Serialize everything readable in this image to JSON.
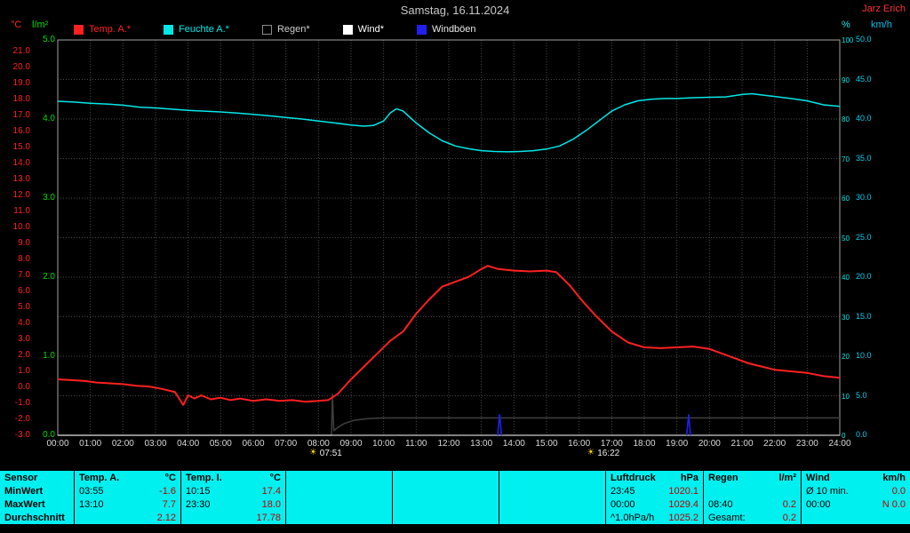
{
  "header": {
    "title": "Samstag, 16.11.2024",
    "station": "Jarz Erich"
  },
  "colors": {
    "chart_background": "#000000",
    "grid": "#4a4a4a",
    "table_background": "#00f0f0",
    "value_text": "#c00000",
    "temp": "#ff2020",
    "humidity": "#00e8e8",
    "rain": "#3c3c3c",
    "wind": "#ffffff",
    "gusts": "#2020ee"
  },
  "legend": [
    {
      "label": "Temp. A.*",
      "swatch": "#ff2020",
      "border": "#ff2020",
      "text": "#ff2020"
    },
    {
      "label": "Feuchte A.*",
      "swatch": "#00e8e8",
      "border": "#00e8e8",
      "text": "#00e8e8"
    },
    {
      "label": "Regen*",
      "swatch": "#000000",
      "border": "#8a8a8a",
      "text": "#cccccc"
    },
    {
      "label": "Wind*",
      "swatch": "#ffffff",
      "border": "#ffffff",
      "text": "#ffffff"
    },
    {
      "label": "Windböen",
      "swatch": "#2020ee",
      "border": "#2020ee",
      "text": "#e8e8e8"
    }
  ],
  "chart_data": {
    "type": "line",
    "title": "Samstag, 16.11.2024",
    "x_range": [
      0,
      24
    ],
    "x_ticks": [
      "00:00",
      "01:00",
      "02:00",
      "03:00",
      "04:00",
      "05:00",
      "06:00",
      "07:00",
      "08:00",
      "09:00",
      "10:00",
      "11:00",
      "12:00",
      "13:00",
      "14:00",
      "15:00",
      "16:00",
      "17:00",
      "18:00",
      "19:00",
      "20:00",
      "21:00",
      "22:00",
      "23:00",
      "24:00"
    ],
    "axes": {
      "temp_c": {
        "label": "°C",
        "min": -3,
        "max": 21,
        "ticks": [
          "21.0",
          "20.0",
          "19.0",
          "18.0",
          "17.0",
          "16.0",
          "15.0",
          "14.0",
          "13.0",
          "12.0",
          "11.0",
          "10.0",
          "9.0",
          "8.0",
          "7.0",
          "6.0",
          "5.0",
          "4.0",
          "3.0",
          "2.0",
          "1.0",
          "0.0",
          "-1.0",
          "-2.0",
          "-3.0"
        ]
      },
      "rain_lm2": {
        "label": "l/m²",
        "min": 0,
        "max": 5,
        "ticks": [
          "5.0",
          "4.0",
          "3.0",
          "2.0",
          "1.0",
          "0.0"
        ]
      },
      "humidity_pct": {
        "label": "%",
        "min": 0,
        "max": 100,
        "ticks": [
          "100",
          "90",
          "80",
          "70",
          "60",
          "50",
          "40",
          "30",
          "20",
          "10",
          "0"
        ]
      },
      "wind_kmh": {
        "label": "km/h",
        "min": 0,
        "max": 50,
        "ticks": [
          "50.0",
          "45.0",
          "40.0",
          "35.0",
          "30.0",
          "25.0",
          "20.0",
          "15.0",
          "10.0",
          "5.0",
          "0.0"
        ]
      }
    },
    "series": [
      {
        "id": "rain-line",
        "name": "Regen*",
        "axis": "rain_lm2",
        "color": "#3c3c3c",
        "width": 1.6,
        "points": [
          [
            0,
            0
          ],
          [
            8.4,
            0
          ],
          [
            8.43,
            0.52
          ],
          [
            8.47,
            0.06
          ],
          [
            8.6,
            0.1
          ],
          [
            8.8,
            0.15
          ],
          [
            9.1,
            0.19
          ],
          [
            9.5,
            0.21
          ],
          [
            10,
            0.22
          ],
          [
            24,
            0.22
          ]
        ]
      },
      {
        "id": "wind-line",
        "name": "Wind*",
        "axis": "wind_kmh",
        "color": "#ffffff",
        "width": 1,
        "points": [
          [
            0,
            0
          ],
          [
            24,
            0
          ]
        ]
      },
      {
        "id": "gust-marker-1",
        "name": "Windböen",
        "axis": "wind_kmh",
        "color": "#2020ee",
        "width": 1.6,
        "points": [
          [
            13.5,
            0
          ],
          [
            13.56,
            2.6
          ],
          [
            13.62,
            0
          ]
        ]
      },
      {
        "id": "gust-marker-2",
        "name": "Windböen",
        "axis": "wind_kmh",
        "color": "#2020ee",
        "width": 1.6,
        "points": [
          [
            19.3,
            0
          ],
          [
            19.36,
            2.6
          ],
          [
            19.42,
            0
          ]
        ]
      },
      {
        "id": "humidity-line",
        "name": "Feuchte A.*",
        "axis": "humidity_pct",
        "color": "#00e8e8",
        "width": 1.5,
        "points": [
          [
            0,
            84.5
          ],
          [
            0.5,
            84.3
          ],
          [
            1,
            84
          ],
          [
            1.5,
            83.8
          ],
          [
            2,
            83.5
          ],
          [
            2.5,
            83
          ],
          [
            3,
            82.8
          ],
          [
            3.5,
            82.5
          ],
          [
            4,
            82.2
          ],
          [
            4.5,
            82
          ],
          [
            5,
            81.8
          ],
          [
            5.5,
            81.5
          ],
          [
            6,
            81.2
          ],
          [
            6.5,
            80.8
          ],
          [
            7,
            80.4
          ],
          [
            7.5,
            80
          ],
          [
            8,
            79.5
          ],
          [
            8.5,
            79
          ],
          [
            9,
            78.5
          ],
          [
            9.4,
            78.2
          ],
          [
            9.7,
            78.4
          ],
          [
            10,
            79.5
          ],
          [
            10.2,
            81.5
          ],
          [
            10.4,
            82.6
          ],
          [
            10.6,
            82
          ],
          [
            10.8,
            80.5
          ],
          [
            11,
            79
          ],
          [
            11.4,
            76.5
          ],
          [
            11.8,
            74.5
          ],
          [
            12.2,
            73.2
          ],
          [
            12.6,
            72.5
          ],
          [
            13,
            72
          ],
          [
            13.4,
            71.8
          ],
          [
            13.8,
            71.7
          ],
          [
            14.2,
            71.8
          ],
          [
            14.6,
            72
          ],
          [
            15,
            72.4
          ],
          [
            15.4,
            73.2
          ],
          [
            15.8,
            74.8
          ],
          [
            16.2,
            77
          ],
          [
            16.6,
            79.5
          ],
          [
            17,
            82
          ],
          [
            17.4,
            83.6
          ],
          [
            17.8,
            84.6
          ],
          [
            18.2,
            85
          ],
          [
            18.6,
            85.2
          ],
          [
            19,
            85.2
          ],
          [
            19.5,
            85.4
          ],
          [
            20,
            85.5
          ],
          [
            20.5,
            85.6
          ],
          [
            21,
            86.2
          ],
          [
            21.3,
            86.4
          ],
          [
            21.6,
            86.1
          ],
          [
            22,
            85.7
          ],
          [
            22.5,
            85.2
          ],
          [
            23,
            84.6
          ],
          [
            23.5,
            83.6
          ],
          [
            24,
            83.2
          ]
        ]
      },
      {
        "id": "temp-line",
        "name": "Temp. A.*",
        "axis": "temp_c",
        "color": "#ff2020",
        "width": 2,
        "points": [
          [
            0,
            0.5
          ],
          [
            0.4,
            0.45
          ],
          [
            0.8,
            0.4
          ],
          [
            1.2,
            0.3
          ],
          [
            1.6,
            0.25
          ],
          [
            2,
            0.2
          ],
          [
            2.4,
            0.1
          ],
          [
            2.8,
            0.05
          ],
          [
            3.2,
            -0.1
          ],
          [
            3.6,
            -0.3
          ],
          [
            3.85,
            -1.1
          ],
          [
            4,
            -0.5
          ],
          [
            4.2,
            -0.7
          ],
          [
            4.4,
            -0.5
          ],
          [
            4.7,
            -0.75
          ],
          [
            5,
            -0.65
          ],
          [
            5.3,
            -0.8
          ],
          [
            5.6,
            -0.7
          ],
          [
            6,
            -0.85
          ],
          [
            6.4,
            -0.75
          ],
          [
            6.8,
            -0.85
          ],
          [
            7.2,
            -0.8
          ],
          [
            7.6,
            -0.9
          ],
          [
            8,
            -0.85
          ],
          [
            8.3,
            -0.8
          ],
          [
            8.6,
            -0.4
          ],
          [
            9,
            0.5
          ],
          [
            9.4,
            1.3
          ],
          [
            9.8,
            2.1
          ],
          [
            10.2,
            2.9
          ],
          [
            10.6,
            3.5
          ],
          [
            11,
            4.6
          ],
          [
            11.4,
            5.5
          ],
          [
            11.8,
            6.3
          ],
          [
            12.2,
            6.6
          ],
          [
            12.6,
            6.9
          ],
          [
            13,
            7.4
          ],
          [
            13.2,
            7.6
          ],
          [
            13.5,
            7.4
          ],
          [
            14,
            7.3
          ],
          [
            14.5,
            7.25
          ],
          [
            15,
            7.3
          ],
          [
            15.3,
            7.2
          ],
          [
            15.7,
            6.4
          ],
          [
            16.1,
            5.4
          ],
          [
            16.5,
            4.5
          ],
          [
            17,
            3.5
          ],
          [
            17.5,
            2.8
          ],
          [
            18,
            2.5
          ],
          [
            18.5,
            2.45
          ],
          [
            19,
            2.5
          ],
          [
            19.5,
            2.55
          ],
          [
            20,
            2.4
          ],
          [
            20.4,
            2.1
          ],
          [
            20.8,
            1.8
          ],
          [
            21.2,
            1.5
          ],
          [
            21.6,
            1.3
          ],
          [
            22,
            1.1
          ],
          [
            22.5,
            1
          ],
          [
            23,
            0.9
          ],
          [
            23.5,
            0.7
          ],
          [
            24,
            0.6
          ]
        ]
      }
    ],
    "sun_markers": [
      {
        "name": "sunrise",
        "time": "07:51",
        "hour": 7.85
      },
      {
        "name": "sunset",
        "time": "16:22",
        "hour": 16.37
      }
    ]
  },
  "table": {
    "row_labels": [
      "Sensor",
      "MinWert",
      "MaxWert",
      "Durchschnitt"
    ],
    "columns": [
      {
        "header": "Temp. A.",
        "unit": "°C",
        "rows": [
          [
            "03:55",
            "-1.6"
          ],
          [
            "13:10",
            "7.7"
          ],
          [
            "",
            "2.12"
          ]
        ]
      },
      {
        "header": "Temp. I.",
        "unit": "°C",
        "rows": [
          [
            "10:15",
            "17.4"
          ],
          [
            "23:30",
            "18.0"
          ],
          [
            "",
            "17.78"
          ]
        ]
      },
      {
        "header": "",
        "unit": "",
        "rows": [
          [
            "",
            ""
          ],
          [
            "",
            ""
          ],
          [
            "",
            ""
          ]
        ]
      },
      {
        "header": "",
        "unit": "",
        "rows": [
          [
            "",
            ""
          ],
          [
            "",
            ""
          ],
          [
            "",
            ""
          ]
        ]
      },
      {
        "header": "",
        "unit": "",
        "rows": [
          [
            "",
            ""
          ],
          [
            "",
            ""
          ],
          [
            "",
            ""
          ]
        ]
      },
      {
        "header": "Luftdruck",
        "unit": "hPa",
        "rows": [
          [
            "23:45",
            "1020.1"
          ],
          [
            "00:00",
            "1029.4"
          ],
          [
            "^1.0hPa/h",
            "1025.2"
          ]
        ]
      },
      {
        "header": "Regen",
        "unit": "l/m²",
        "rows": [
          [
            "",
            ""
          ],
          [
            "08:40",
            "0.2"
          ],
          [
            "Gesamt:",
            "0.2"
          ]
        ]
      },
      {
        "header": "Wind",
        "unit": "km/h",
        "rows": [
          [
            "Ø 10 min.",
            "0.0"
          ],
          [
            "00:00",
            "N 0.0"
          ],
          [
            "",
            ""
          ]
        ]
      }
    ]
  }
}
